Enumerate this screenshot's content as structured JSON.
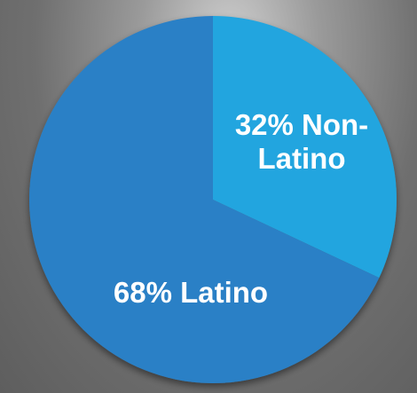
{
  "chart_data": {
    "type": "pie",
    "values": [
      32,
      68
    ],
    "value_labels": [
      "32% Non-Latino",
      "68% Latino"
    ],
    "colors": [
      "#21a5df",
      "#2b80c6"
    ],
    "start_angle": 0,
    "direction": "clockwise"
  }
}
